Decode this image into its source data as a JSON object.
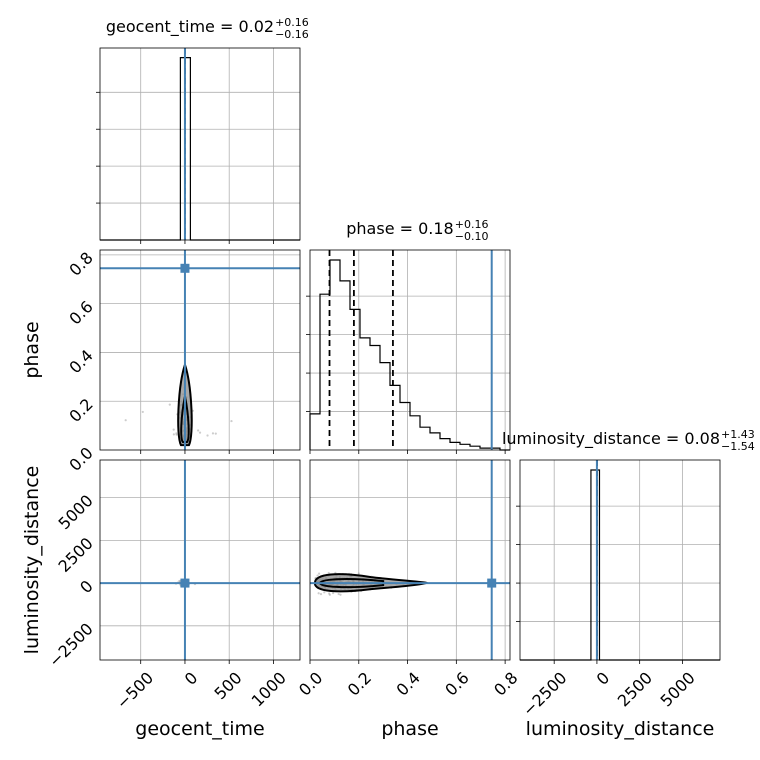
{
  "chart_data": {
    "type": "corner",
    "parameters": [
      "geocent_time",
      "phase",
      "luminosity_distance"
    ],
    "axis_labels": [
      "geocent_time",
      "phase",
      "luminosity_distance"
    ],
    "ranges": {
      "geocent_time": [
        -960,
        1300
      ],
      "phase": [
        0.0,
        0.82
      ],
      "luminosity_distance": [
        -4500,
        7200
      ]
    },
    "ticks": {
      "geocent_time": [
        -500,
        0,
        500,
        1000
      ],
      "phase": [
        0.0,
        0.2,
        0.4,
        0.6,
        0.8
      ],
      "luminosity_distance": [
        -2500,
        0,
        2500,
        5000
      ]
    },
    "tick_labels": {
      "geocent_time": [
        "−500",
        "0",
        "500",
        "1000"
      ],
      "phase": [
        "0.0",
        "0.2",
        "0.4",
        "0.6",
        "0.8"
      ],
      "luminosity_distance": [
        "−2500",
        "0",
        "2500",
        "5000"
      ]
    },
    "titles": {
      "geocent_time": {
        "name": "geocent_time",
        "median": "0.02",
        "plus": "+0.16",
        "minus": "−0.16"
      },
      "phase": {
        "name": "phase",
        "median": "0.18",
        "plus": "+0.16",
        "minus": "−0.10"
      },
      "luminosity_distance": {
        "name": "luminosity_distance",
        "median": "0.08",
        "plus": "+1.43",
        "minus": "−1.54"
      }
    },
    "truths": {
      "geocent_time": 0,
      "phase": 0.745,
      "luminosity_distance": 0
    },
    "quantiles": {
      "geocent_time": [
        -0.14,
        0.02,
        0.18
      ],
      "phase": [
        0.08,
        0.18,
        0.34
      ],
      "luminosity_distance": [
        -1.46,
        0.08,
        1.51
      ]
    },
    "histograms": {
      "geocent_time": {
        "bin_edges": [
          -960,
          -51.6,
          61.4,
          174.4,
          1300
        ],
        "counts": [
          0,
          1.0,
          0,
          0
        ]
      },
      "phase": {
        "bin_edges": [
          0.0,
          0.041,
          0.082,
          0.123,
          0.164,
          0.205,
          0.246,
          0.287,
          0.328,
          0.369,
          0.41,
          0.451,
          0.492,
          0.533,
          0.574,
          0.615,
          0.656,
          0.697,
          0.738,
          0.779,
          0.82
        ],
        "counts": [
          0.19,
          0.82,
          1.0,
          0.89,
          0.74,
          0.59,
          0.55,
          0.46,
          0.34,
          0.25,
          0.18,
          0.12,
          0.09,
          0.06,
          0.04,
          0.03,
          0.02,
          0.01,
          0.01,
          0
        ]
      },
      "luminosity_distance": {
        "bin_edges": [
          -4500,
          -350,
          150,
          650,
          7200
        ],
        "counts": [
          0,
          1.0,
          0,
          0
        ]
      }
    },
    "grid": true,
    "panels": "lower-triangle corner plot (3x3)"
  }
}
